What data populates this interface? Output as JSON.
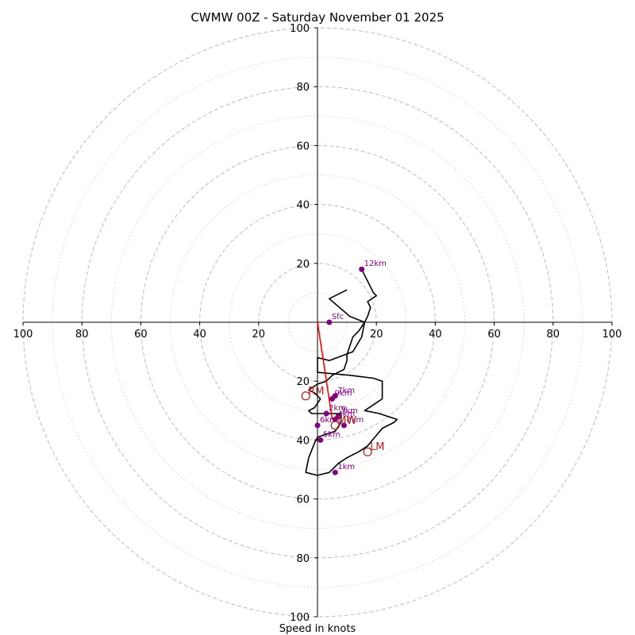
{
  "chart_data": {
    "type": "hodograph",
    "title": "CWMW 00Z - Saturday November 01 2025",
    "xlabel": "Speed in knots",
    "ring_labels": [
      "20",
      "40",
      "60",
      "80",
      "100"
    ],
    "axis_range": [
      -100,
      100
    ],
    "rings_dashed": [
      20,
      40,
      60,
      80,
      100
    ],
    "rings_dotted": [
      10,
      30,
      50,
      70,
      90
    ],
    "colors": {
      "trace": "#000000",
      "points": "#800080",
      "storm": "#b22222",
      "shear": "#ff0000",
      "grid": "#bbbbbb"
    },
    "trace": [
      [
        10,
        -11
      ],
      [
        4,
        -8
      ],
      [
        11,
        -2
      ],
      [
        16,
        0
      ],
      [
        15,
        5
      ],
      [
        12,
        10
      ],
      [
        4,
        13
      ],
      [
        0,
        12
      ],
      [
        0,
        17
      ],
      [
        11,
        18
      ],
      [
        19,
        19
      ],
      [
        22,
        20
      ],
      [
        22,
        26
      ],
      [
        19,
        28
      ],
      [
        16,
        30
      ],
      [
        21,
        31
      ],
      [
        24,
        32
      ],
      [
        27,
        33
      ],
      [
        26,
        34
      ],
      [
        22,
        36
      ],
      [
        17,
        42
      ],
      [
        14,
        44
      ],
      [
        10,
        46
      ],
      [
        7,
        48
      ],
      [
        4,
        51
      ],
      [
        0,
        52
      ],
      [
        -4,
        51
      ],
      [
        -3,
        46
      ],
      [
        -1,
        41
      ],
      [
        0,
        39
      ],
      [
        3,
        38
      ],
      [
        6,
        37
      ],
      [
        8,
        34
      ],
      [
        8,
        31
      ],
      [
        7,
        31
      ],
      [
        5,
        31
      ],
      [
        3,
        31
      ],
      [
        0,
        31
      ],
      [
        -2,
        31
      ],
      [
        -3,
        30
      ],
      [
        -1,
        29
      ],
      [
        1,
        26
      ],
      [
        -1,
        24
      ],
      [
        -3,
        23
      ],
      [
        0,
        21
      ],
      [
        3,
        20
      ],
      [
        5,
        18
      ],
      [
        9,
        16
      ],
      [
        10,
        13
      ],
      [
        10,
        11
      ],
      [
        11,
        8
      ],
      [
        12,
        5
      ],
      [
        14,
        3
      ],
      [
        16,
        0
      ],
      [
        17,
        -2
      ],
      [
        18,
        -5
      ],
      [
        17,
        -7
      ],
      [
        20,
        -9
      ],
      [
        19,
        -10
      ],
      [
        15,
        -18
      ]
    ],
    "height_points": [
      {
        "label": "Sfc",
        "u": 4,
        "v": 0
      },
      {
        "label": "1km",
        "u": 6,
        "v": 51
      },
      {
        "label": "2km",
        "u": 3,
        "v": 31
      },
      {
        "label": "3km",
        "u": 7,
        "v": 32
      },
      {
        "label": "4km",
        "u": 6,
        "v": 33
      },
      {
        "label": "5km",
        "u": 1,
        "v": 40
      },
      {
        "label": "6km",
        "u": 0,
        "v": 35
      },
      {
        "label": "7km",
        "u": 6,
        "v": 25
      },
      {
        "label": "8km",
        "u": 9,
        "v": 35
      },
      {
        "label": "9km",
        "u": 5,
        "v": 26
      },
      {
        "label": "12km",
        "u": 15,
        "v": -18
      }
    ],
    "storm_motions": [
      {
        "label": "RM",
        "u": -4,
        "v": 25
      },
      {
        "label": "LM",
        "u": 17,
        "v": 44
      },
      {
        "label": "MW",
        "u": 6,
        "v": 35
      }
    ],
    "shear_vector": {
      "from": [
        0,
        0
      ],
      "to": [
        5,
        33
      ]
    }
  }
}
